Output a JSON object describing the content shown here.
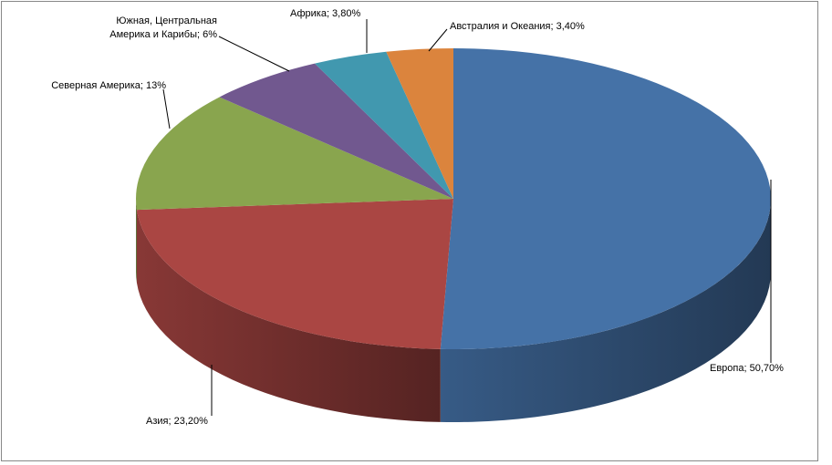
{
  "chart_data": {
    "type": "pie3d",
    "values": [
      50.7,
      23.2,
      13,
      6,
      3.8,
      3.4
    ],
    "value_labels": [
      "Европа; 50,70%",
      "Азия; 23,20%",
      "Северная Америка; 13%",
      "Южная, Центральная\nАмерика и Карибы; 6%",
      "Африка; 3,80%",
      "Австралия и Океания; 3,40%"
    ],
    "colors": [
      "#4572a7",
      "#aa4643",
      "#89a54e",
      "#71588f",
      "#4198af",
      "#db843d"
    ]
  }
}
